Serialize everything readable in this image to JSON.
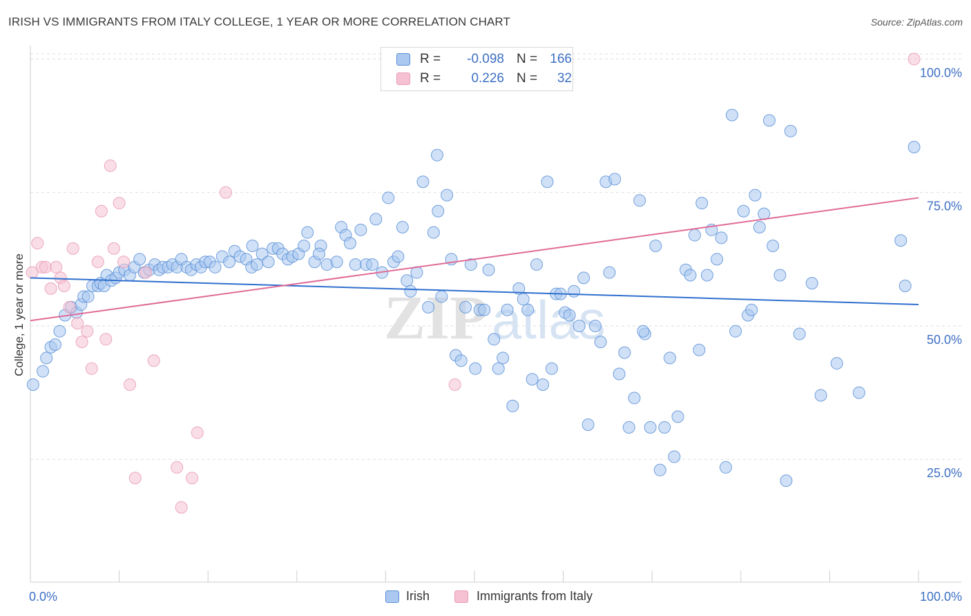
{
  "title": "IRISH VS IMMIGRANTS FROM ITALY COLLEGE, 1 YEAR OR MORE CORRELATION CHART",
  "source": "Source: ZipAtlas.com",
  "watermark": {
    "zip": "ZIP",
    "atlas": "atlas"
  },
  "colors": {
    "blue": "#5b8fd6",
    "blue_fill": "#aac8f0",
    "blue_line": "#2f6fce",
    "pink": "#e79ab4",
    "pink_fill": "#f6c2d3",
    "pink_line": "#e06a96",
    "value_text": "#3d6fc4",
    "grid": "#dddddd"
  },
  "legend": {
    "rows": [
      {
        "r_label": "R =",
        "r_value": "-0.098",
        "n_label": "N =",
        "n_value": "166"
      },
      {
        "r_label": "R =",
        "r_value": "0.226",
        "n_label": "N =",
        "n_value": "32"
      }
    ]
  },
  "bottom_legend": [
    "Irish",
    "Immigrants from Italy"
  ],
  "chart_data": {
    "type": "scatter",
    "title": "IRISH VS IMMIGRANTS FROM ITALY COLLEGE, 1 YEAR OR MORE CORRELATION CHART",
    "xlabel": "",
    "ylabel": "College, 1 year or more",
    "xlim": [
      0,
      100
    ],
    "ylim": [
      2,
      102
    ],
    "x_ticks": [
      "0.0%",
      "100.0%"
    ],
    "y_ticks": [
      {
        "value": 100,
        "label": "100.0%"
      },
      {
        "value": 75,
        "label": "75.0%"
      },
      {
        "value": 50,
        "label": "50.0%"
      },
      {
        "value": 25,
        "label": "25.0%"
      }
    ],
    "grid": true,
    "legend_position": "top-center",
    "series": [
      {
        "name": "Irish",
        "color": "#5b8fd6",
        "trend": {
          "x0": 0,
          "y0": 59.0,
          "x1": 100,
          "y1": 54.0
        },
        "points": [
          [
            0.3,
            39.0
          ],
          [
            1.4,
            41.5
          ],
          [
            1.8,
            44.0
          ],
          [
            2.3,
            46.0
          ],
          [
            2.8,
            46.5
          ],
          [
            3.3,
            49.0
          ],
          [
            3.9,
            52.0
          ],
          [
            4.6,
            53.5
          ],
          [
            5.2,
            52.5
          ],
          [
            5.7,
            54.0
          ],
          [
            6.0,
            55.5
          ],
          [
            6.5,
            55.5
          ],
          [
            7.0,
            57.5
          ],
          [
            7.6,
            57.5
          ],
          [
            7.9,
            58.0
          ],
          [
            8.3,
            57.5
          ],
          [
            8.6,
            59.5
          ],
          [
            9.1,
            58.5
          ],
          [
            9.6,
            59.0
          ],
          [
            10.0,
            60.0
          ],
          [
            10.6,
            60.5
          ],
          [
            11.2,
            59.5
          ],
          [
            11.7,
            61.0
          ],
          [
            12.3,
            62.5
          ],
          [
            12.8,
            60.0
          ],
          [
            13.4,
            60.5
          ],
          [
            14.0,
            61.5
          ],
          [
            14.5,
            60.5
          ],
          [
            14.9,
            61.0
          ],
          [
            15.5,
            61.0
          ],
          [
            16.0,
            61.5
          ],
          [
            16.5,
            61.0
          ],
          [
            17.0,
            62.5
          ],
          [
            17.6,
            61.0
          ],
          [
            18.1,
            60.5
          ],
          [
            18.7,
            61.5
          ],
          [
            19.2,
            61.0
          ],
          [
            19.7,
            62.0
          ],
          [
            20.2,
            62.0
          ],
          [
            20.8,
            61.0
          ],
          [
            21.6,
            63.0
          ],
          [
            22.4,
            62.0
          ],
          [
            23.0,
            64.0
          ],
          [
            23.6,
            63.0
          ],
          [
            24.3,
            62.5
          ],
          [
            24.9,
            61.0
          ],
          [
            25.5,
            61.5
          ],
          [
            26.1,
            63.5
          ],
          [
            26.8,
            62.0
          ],
          [
            27.3,
            64.5
          ],
          [
            27.9,
            64.5
          ],
          [
            28.4,
            63.5
          ],
          [
            29.0,
            62.5
          ],
          [
            29.5,
            63.0
          ],
          [
            30.2,
            63.5
          ],
          [
            30.8,
            65.0
          ],
          [
            31.2,
            67.5
          ],
          [
            32.0,
            62.0
          ],
          [
            32.7,
            65.0
          ],
          [
            33.4,
            61.5
          ],
          [
            34.5,
            62.0
          ],
          [
            35.0,
            68.5
          ],
          [
            35.5,
            67.0
          ],
          [
            36.0,
            65.5
          ],
          [
            36.6,
            61.5
          ],
          [
            37.2,
            68.0
          ],
          [
            37.8,
            61.5
          ],
          [
            38.5,
            61.5
          ],
          [
            38.9,
            70.0
          ],
          [
            39.6,
            60.0
          ],
          [
            40.3,
            74.0
          ],
          [
            40.9,
            62.0
          ],
          [
            41.4,
            63.0
          ],
          [
            41.9,
            68.5
          ],
          [
            42.4,
            58.5
          ],
          [
            42.8,
            56.5
          ],
          [
            43.5,
            60.0
          ],
          [
            44.2,
            77.0
          ],
          [
            44.8,
            53.5
          ],
          [
            45.4,
            67.5
          ],
          [
            45.9,
            71.5
          ],
          [
            46.3,
            55.5
          ],
          [
            46.9,
            74.5
          ],
          [
            47.4,
            62.5
          ],
          [
            47.9,
            44.5
          ],
          [
            48.5,
            43.5
          ],
          [
            49.0,
            53.5
          ],
          [
            49.6,
            61.5
          ],
          [
            50.1,
            42.0
          ],
          [
            50.6,
            53.0
          ],
          [
            51.1,
            53.0
          ],
          [
            51.6,
            60.5
          ],
          [
            52.2,
            47.5
          ],
          [
            52.7,
            42.0
          ],
          [
            53.2,
            44.0
          ],
          [
            53.7,
            53.0
          ],
          [
            54.3,
            35.0
          ],
          [
            55.0,
            57.0
          ],
          [
            55.5,
            55.0
          ],
          [
            56.0,
            53.0
          ],
          [
            56.5,
            40.0
          ],
          [
            57.0,
            61.5
          ],
          [
            57.7,
            39.0
          ],
          [
            58.2,
            77.0
          ],
          [
            58.7,
            42.0
          ],
          [
            59.2,
            56.0
          ],
          [
            59.7,
            56.0
          ],
          [
            60.2,
            52.5
          ],
          [
            60.7,
            52.0
          ],
          [
            61.2,
            56.5
          ],
          [
            61.8,
            50.0
          ],
          [
            62.3,
            59.0
          ],
          [
            62.8,
            31.5
          ],
          [
            63.6,
            50.0
          ],
          [
            64.2,
            47.0
          ],
          [
            64.8,
            77.0
          ],
          [
            65.2,
            60.0
          ],
          [
            65.8,
            77.5
          ],
          [
            66.3,
            41.0
          ],
          [
            66.9,
            45.0
          ],
          [
            67.4,
            31.0
          ],
          [
            68.0,
            36.5
          ],
          [
            68.6,
            73.5
          ],
          [
            69.2,
            48.5
          ],
          [
            69.8,
            31.0
          ],
          [
            70.4,
            65.0
          ],
          [
            70.9,
            23.0
          ],
          [
            71.4,
            31.0
          ],
          [
            72.0,
            44.0
          ],
          [
            72.5,
            25.5
          ],
          [
            72.9,
            33.0
          ],
          [
            73.8,
            60.5
          ],
          [
            74.3,
            59.5
          ],
          [
            74.8,
            67.0
          ],
          [
            75.3,
            45.5
          ],
          [
            75.6,
            73.0
          ],
          [
            76.2,
            59.5
          ],
          [
            76.7,
            68.0
          ],
          [
            77.3,
            62.5
          ],
          [
            77.8,
            66.5
          ],
          [
            78.3,
            23.5
          ],
          [
            79.0,
            89.5
          ],
          [
            79.4,
            49.0
          ],
          [
            80.3,
            71.5
          ],
          [
            80.8,
            52.0
          ],
          [
            81.2,
            53.0
          ],
          [
            81.6,
            74.5
          ],
          [
            82.1,
            68.5
          ],
          [
            82.6,
            71.0
          ],
          [
            83.2,
            88.5
          ],
          [
            83.6,
            65.0
          ],
          [
            84.4,
            59.5
          ],
          [
            85.1,
            21.0
          ],
          [
            85.6,
            86.5
          ],
          [
            86.6,
            48.5
          ],
          [
            88.0,
            58.0
          ],
          [
            89.0,
            37.0
          ],
          [
            90.8,
            43.0
          ],
          [
            93.3,
            37.5
          ],
          [
            98.0,
            66.0
          ],
          [
            98.5,
            57.5
          ],
          [
            99.5,
            83.5
          ],
          [
            69.0,
            49.0
          ],
          [
            45.8,
            82.0
          ],
          [
            32.5,
            63.5
          ],
          [
            25.0,
            65.0
          ]
        ]
      },
      {
        "name": "Immigrants from Italy",
        "color": "#e79ab4",
        "trend": {
          "x0": 0,
          "y0": 51.0,
          "x1": 100,
          "y1": 74.0
        },
        "points": [
          [
            0.2,
            60.0
          ],
          [
            0.8,
            65.5
          ],
          [
            1.3,
            61.0
          ],
          [
            1.7,
            61.0
          ],
          [
            2.3,
            57.0
          ],
          [
            2.9,
            61.0
          ],
          [
            3.4,
            59.0
          ],
          [
            3.8,
            57.5
          ],
          [
            4.4,
            53.5
          ],
          [
            4.8,
            64.5
          ],
          [
            5.3,
            50.5
          ],
          [
            5.8,
            47.0
          ],
          [
            6.4,
            49.0
          ],
          [
            6.9,
            42.0
          ],
          [
            7.6,
            62.0
          ],
          [
            8.0,
            71.5
          ],
          [
            8.5,
            47.5
          ],
          [
            9.0,
            80.0
          ],
          [
            9.4,
            64.5
          ],
          [
            10.0,
            73.0
          ],
          [
            10.5,
            62.0
          ],
          [
            11.2,
            39.0
          ],
          [
            11.8,
            21.5
          ],
          [
            13.0,
            60.0
          ],
          [
            13.9,
            43.5
          ],
          [
            16.5,
            23.5
          ],
          [
            17.0,
            16.0
          ],
          [
            18.2,
            21.5
          ],
          [
            18.8,
            30.0
          ],
          [
            22.0,
            75.0
          ],
          [
            47.8,
            39.0
          ],
          [
            99.5,
            100.0
          ]
        ]
      }
    ]
  }
}
